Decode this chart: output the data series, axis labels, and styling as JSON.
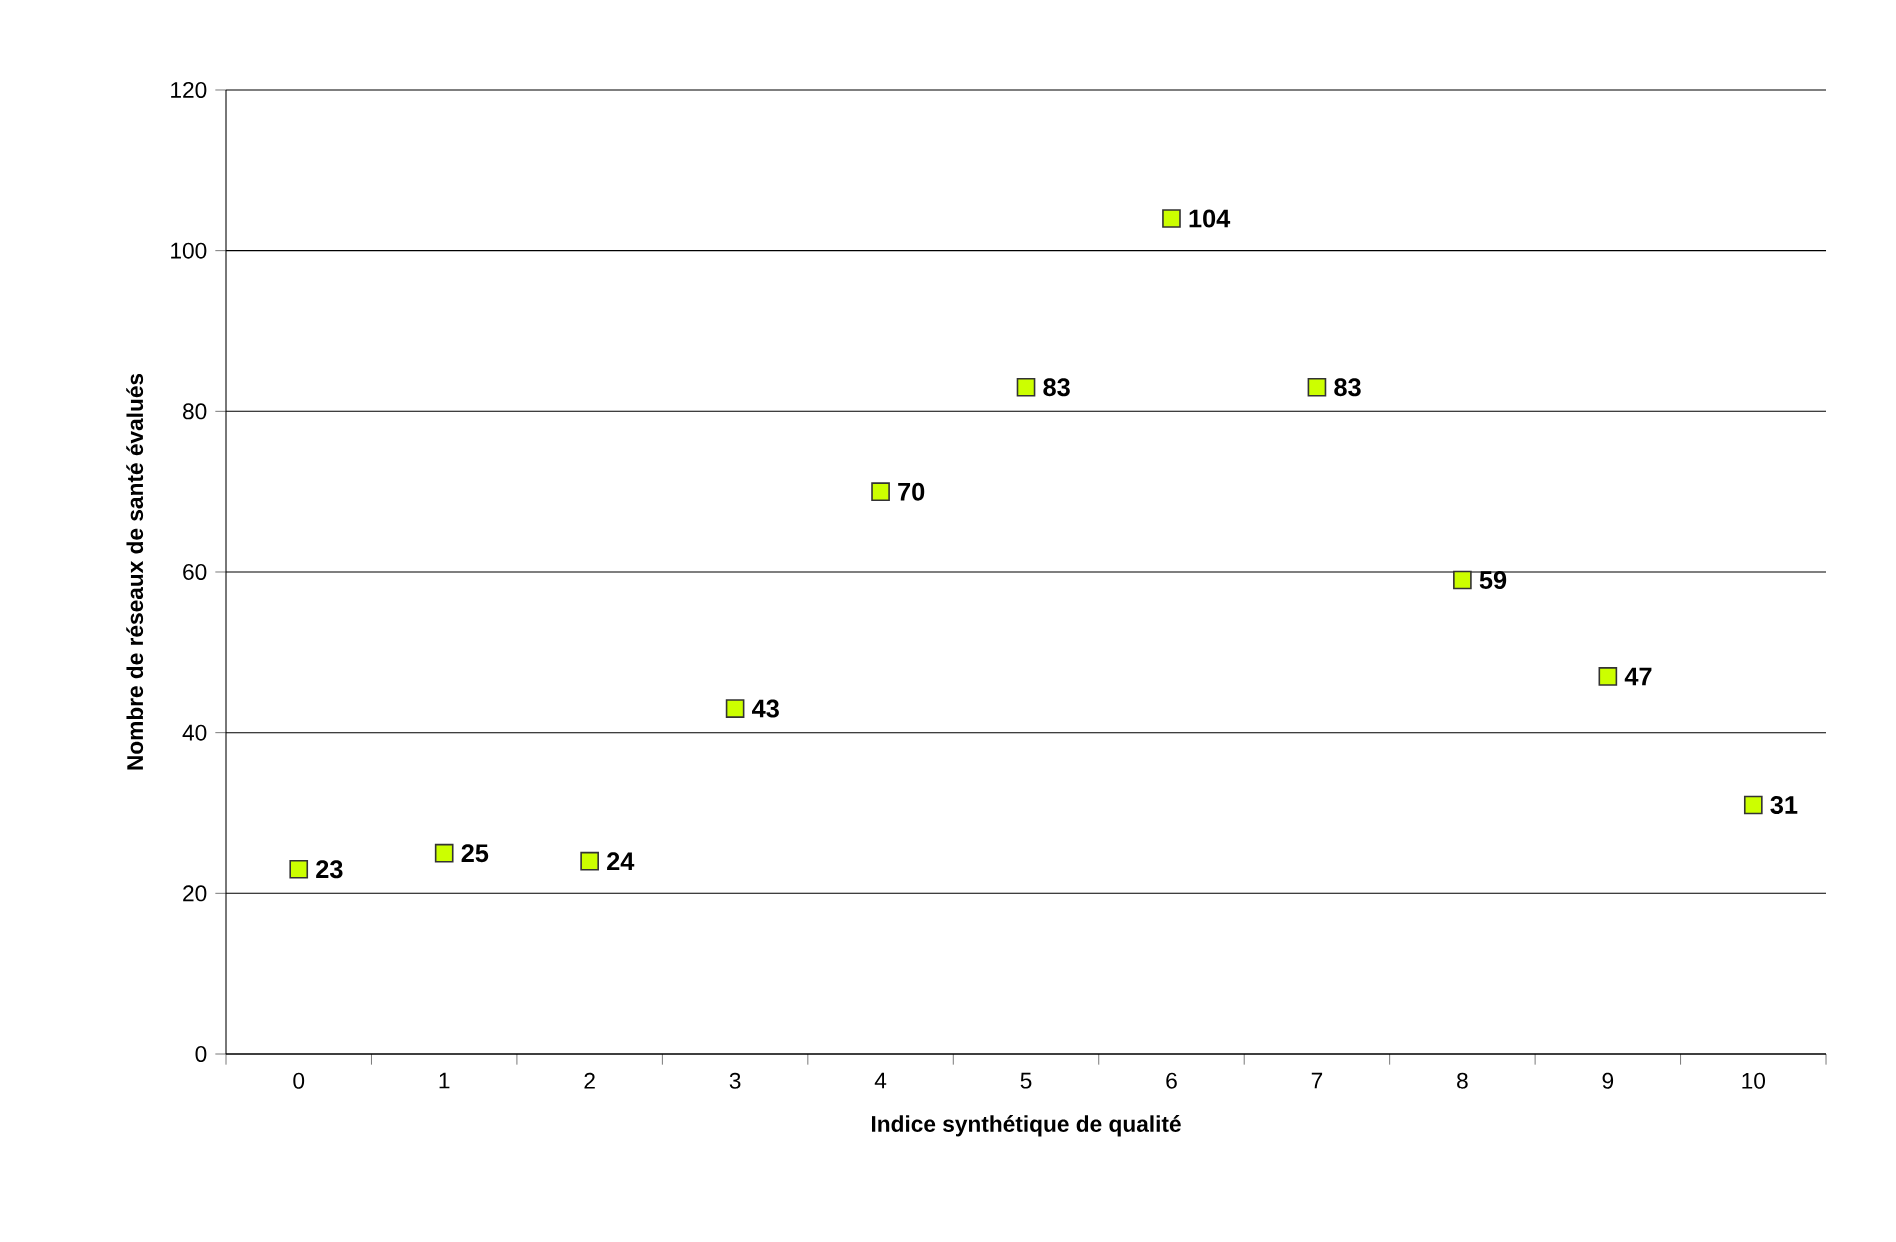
{
  "chart_data": {
    "type": "scatter",
    "xlabel": "Indice synthétique de qualité",
    "ylabel": "Nombre de réseaux de santé évalués",
    "categories": [
      "0",
      "1",
      "2",
      "3",
      "4",
      "5",
      "6",
      "7",
      "8",
      "9",
      "10"
    ],
    "values": [
      23,
      25,
      24,
      43,
      70,
      83,
      104,
      83,
      59,
      47,
      31
    ],
    "color": "#ccff00",
    "marker": "square",
    "data_labels": true,
    "grid": "y",
    "ylim": [
      0,
      120
    ],
    "yticks": [
      0,
      20,
      40,
      60,
      80,
      100,
      120
    ]
  }
}
